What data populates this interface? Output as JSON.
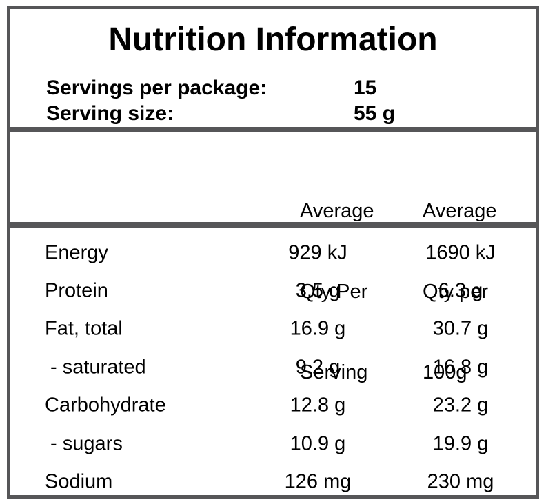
{
  "panel": {
    "title": "Nutrition Information",
    "meta": [
      {
        "label": "Servings per package:",
        "value": "15"
      },
      {
        "label": "Serving size:",
        "value": "55 g"
      }
    ],
    "columns": {
      "per_serving": {
        "line1": "Average",
        "line2": "Qty Per",
        "line3": "Serving"
      },
      "per_100g": {
        "line1": "Average",
        "line2": "Qty per",
        "line3": "100g"
      }
    },
    "rows": [
      {
        "label": "Energy",
        "per_serving": "929 kJ",
        "per_100g": "1690 kJ"
      },
      {
        "label": "Protein",
        "per_serving": "3.5 g",
        "per_100g": "6.3 g"
      },
      {
        "label": "Fat, total",
        "per_serving": "16.9 g",
        "per_100g": "30.7 g"
      },
      {
        "label": " - saturated",
        "per_serving": "9.2 g",
        "per_100g": "16.8 g"
      },
      {
        "label": "Carbohydrate",
        "per_serving": "12.8 g",
        "per_100g": "23.2 g"
      },
      {
        "label": " - sugars",
        "per_serving": "10.9 g",
        "per_100g": "19.9 g"
      },
      {
        "label": "Sodium",
        "per_serving": "126 mg",
        "per_100g": "230 mg"
      }
    ],
    "colors": {
      "border": "#565658",
      "text": "#000000",
      "background": "#ffffff"
    }
  }
}
